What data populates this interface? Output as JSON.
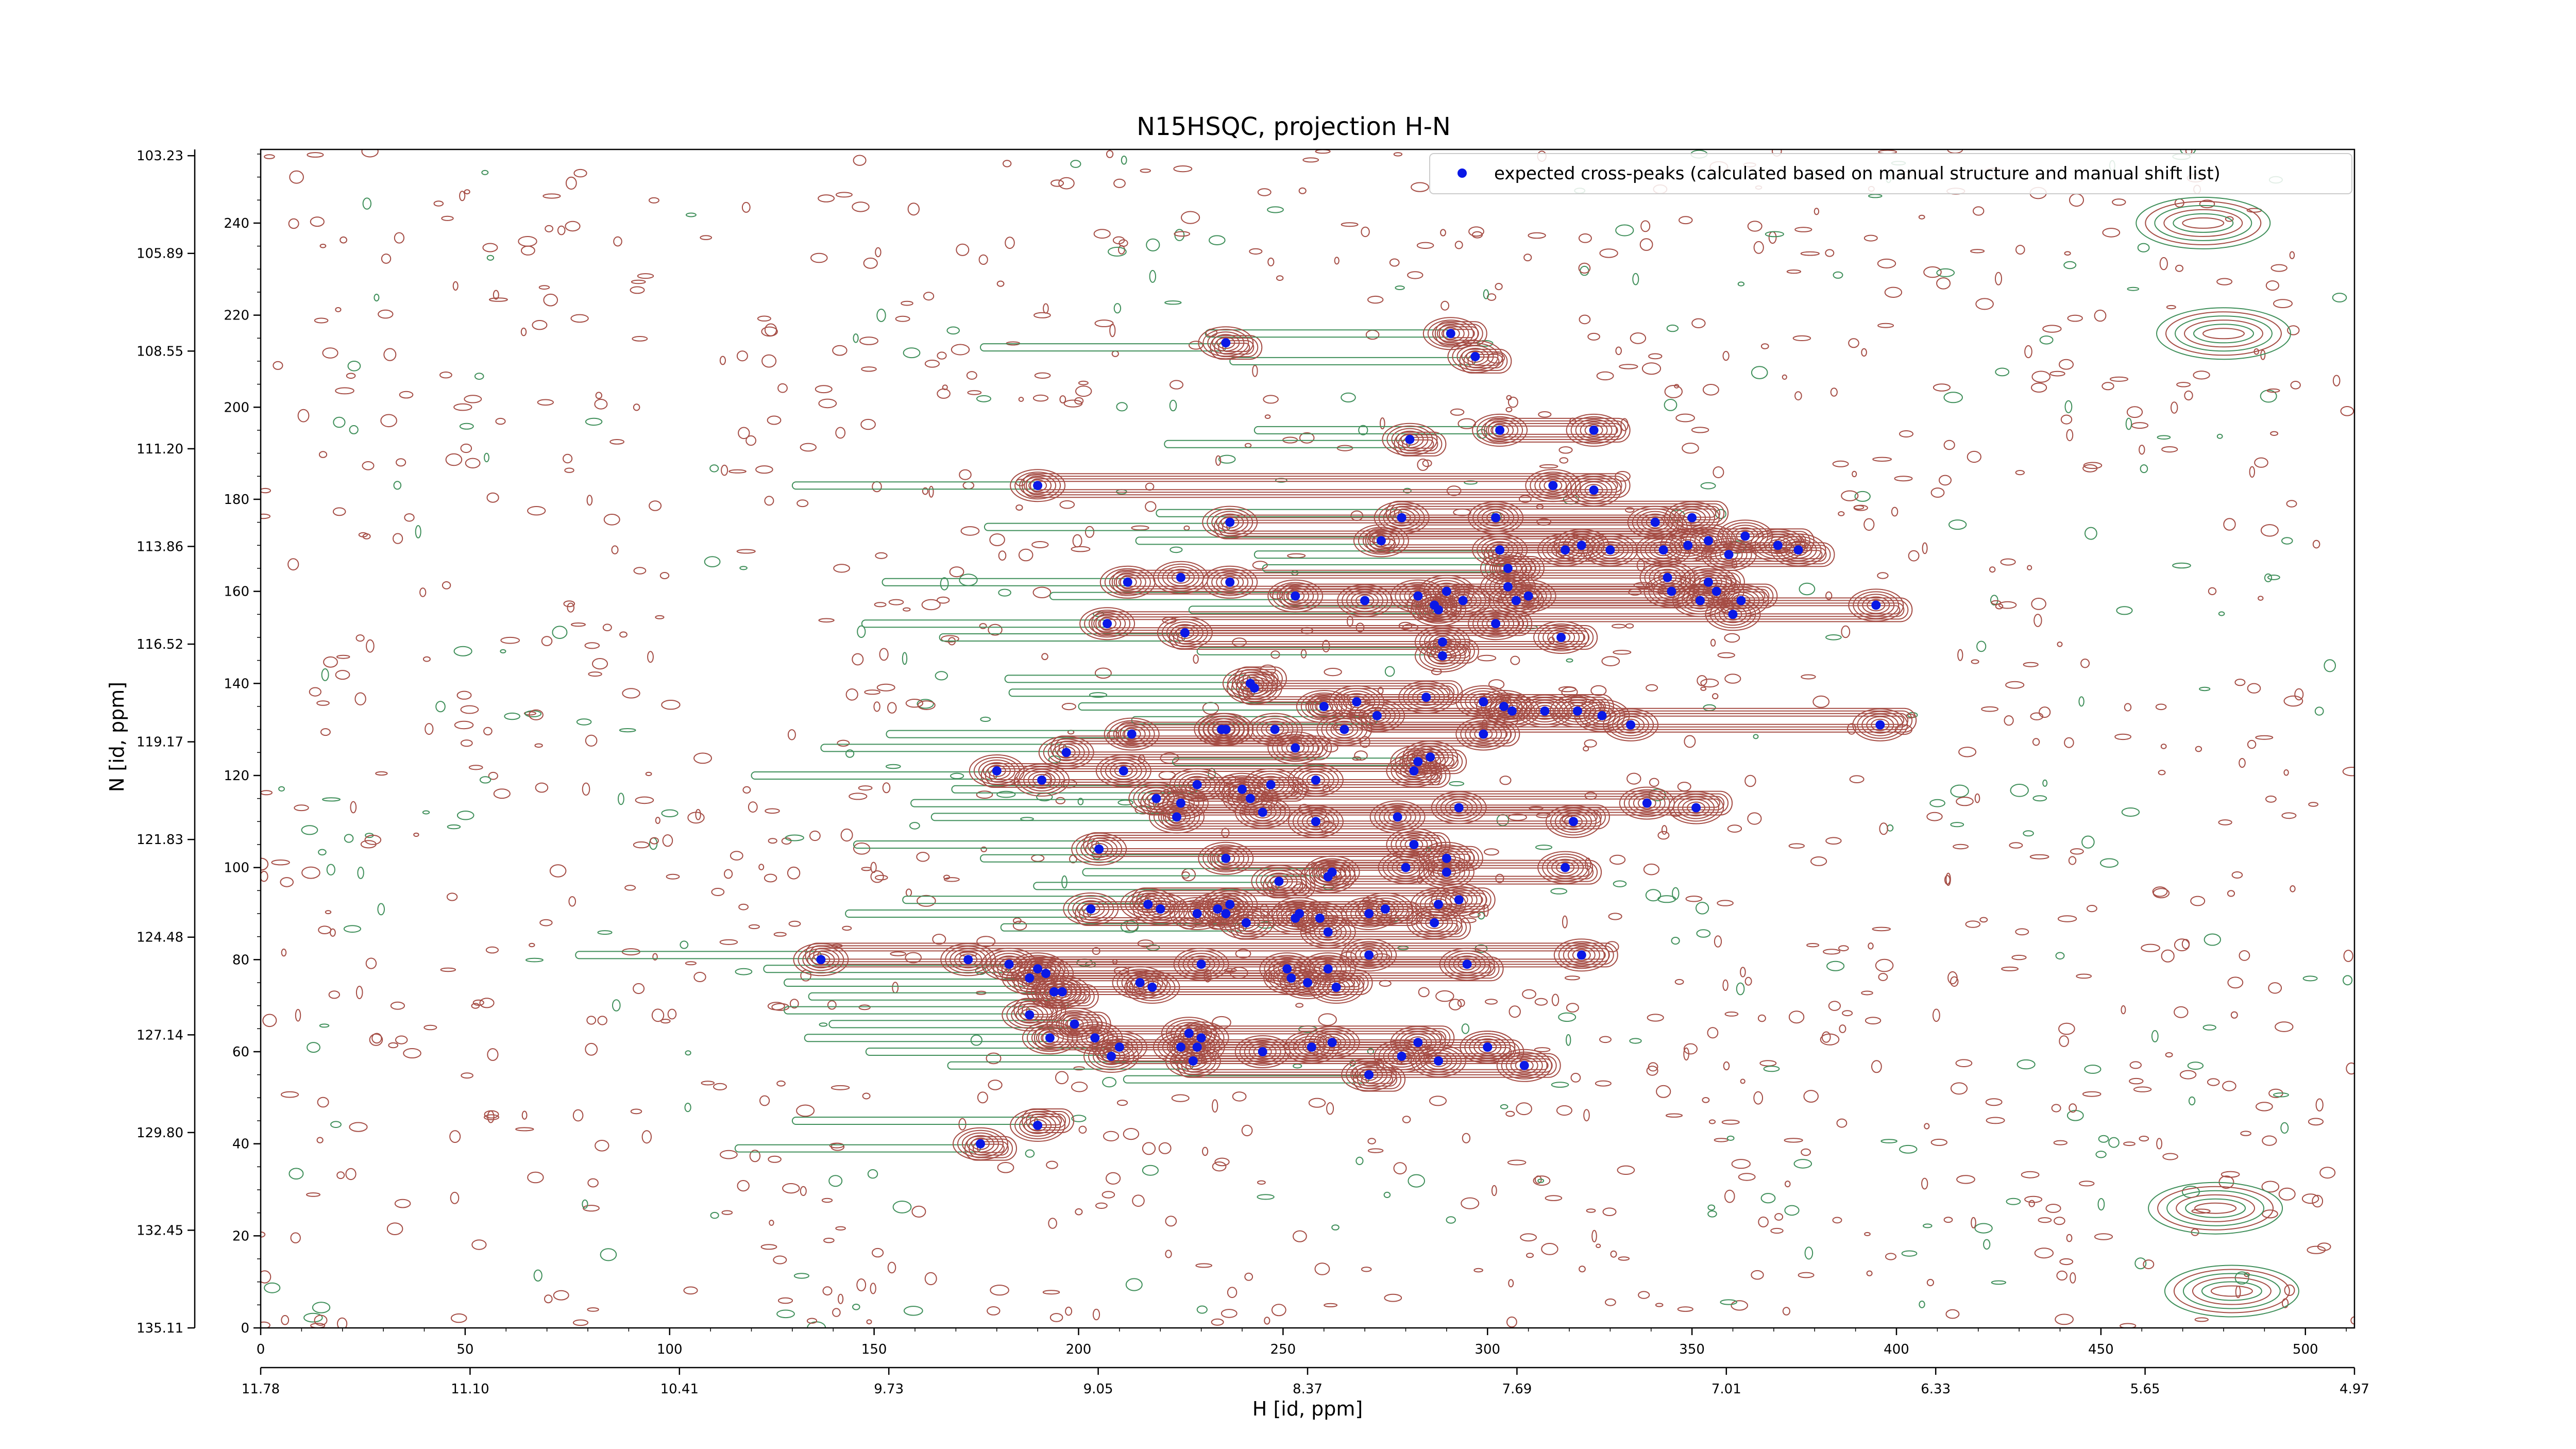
{
  "chart_data": {
    "type": "scatter",
    "title": "N15HSQC, projection H-N",
    "xlabel": "H [id, ppm]",
    "ylabel": "N [id, ppm]",
    "xlim": [
      0,
      512
    ],
    "ylim": [
      0,
      256
    ],
    "x_ticks": [
      0,
      50,
      100,
      150,
      200,
      250,
      300,
      350,
      400,
      450,
      500
    ],
    "y_ticks": [
      0,
      20,
      40,
      60,
      80,
      100,
      120,
      140,
      160,
      180,
      200,
      220,
      240
    ],
    "x_ppm_ticks": [
      {
        "pos": 0,
        "label": "11.78"
      },
      {
        "pos": 56,
        "label": "11.10"
      },
      {
        "pos": 112,
        "label": "10.41"
      },
      {
        "pos": 168,
        "label": "9.73"
      },
      {
        "pos": 224,
        "label": "9.05"
      },
      {
        "pos": 280,
        "label": "8.37"
      },
      {
        "pos": 336,
        "label": "7.69"
      },
      {
        "pos": 392,
        "label": "7.01"
      },
      {
        "pos": 448,
        "label": "6.33"
      },
      {
        "pos": 504,
        "label": "5.65"
      },
      {
        "pos": 560,
        "label": "4.97"
      }
    ],
    "y_ppm_ticks": [
      {
        "pos": 0,
        "label": "135.11"
      },
      {
        "pos": 21.8,
        "label": "132.45"
      },
      {
        "pos": 43.6,
        "label": "129.80"
      },
      {
        "pos": 65.4,
        "label": "127.14"
      },
      {
        "pos": 87.2,
        "label": "124.48"
      },
      {
        "pos": 109,
        "label": "121.83"
      },
      {
        "pos": 130.8,
        "label": "119.17"
      },
      {
        "pos": 152.6,
        "label": "116.52"
      },
      {
        "pos": 174.4,
        "label": "113.86"
      },
      {
        "pos": 196.2,
        "label": "111.20"
      },
      {
        "pos": 218,
        "label": "108.55"
      },
      {
        "pos": 239.8,
        "label": "105.89"
      },
      {
        "pos": 261.6,
        "label": "103.23"
      }
    ],
    "legend": {
      "placement": "top-right",
      "entries": [
        "expected cross-peaks (calculated based on manual structure and manual shift list)"
      ]
    },
    "colors": {
      "marker": "#0a18e6",
      "positive_contour": "#a54d45",
      "negative_contour": "#3f8f5a"
    },
    "grid": false,
    "series": [
      {
        "name": "expected cross-peaks (calculated based on manual structure and manual shift list)",
        "points": [
          [
            236,
            214
          ],
          [
            291,
            216
          ],
          [
            297,
            211
          ],
          [
            281,
            193
          ],
          [
            303,
            195
          ],
          [
            326,
            195
          ],
          [
            190,
            183
          ],
          [
            237,
            175
          ],
          [
            279,
            176
          ],
          [
            274,
            171
          ],
          [
            302,
            176
          ],
          [
            316,
            183
          ],
          [
            326,
            182
          ],
          [
            341,
            175
          ],
          [
            349,
            170
          ],
          [
            350,
            176
          ],
          [
            363,
            172
          ],
          [
            303,
            169
          ],
          [
            305,
            165
          ],
          [
            319,
            169
          ],
          [
            323,
            170
          ],
          [
            330,
            169
          ],
          [
            343,
            169
          ],
          [
            354,
            171
          ],
          [
            359,
            168
          ],
          [
            371,
            170
          ],
          [
            376,
            169
          ],
          [
            212,
            162
          ],
          [
            225,
            163
          ],
          [
            237,
            162
          ],
          [
            305,
            161
          ],
          [
            307,
            158
          ],
          [
            344,
            163
          ],
          [
            354,
            162
          ],
          [
            352,
            158
          ],
          [
            356,
            160
          ],
          [
            362,
            158
          ],
          [
            283,
            159
          ],
          [
            290,
            160
          ],
          [
            294,
            158
          ],
          [
            253,
            159
          ],
          [
            270,
            158
          ],
          [
            287,
            157
          ],
          [
            288,
            156
          ],
          [
            302,
            153
          ],
          [
            310,
            159
          ],
          [
            345,
            160
          ],
          [
            360,
            155
          ],
          [
            395,
            157
          ],
          [
            207,
            153
          ],
          [
            226,
            151
          ],
          [
            318,
            150
          ],
          [
            289,
            149
          ],
          [
            289,
            146
          ],
          [
            242,
            140
          ],
          [
            243,
            139
          ],
          [
            260,
            135
          ],
          [
            268,
            136
          ],
          [
            273,
            133
          ],
          [
            285,
            137
          ],
          [
            299,
            136
          ],
          [
            304,
            135
          ],
          [
            306,
            134
          ],
          [
            314,
            134
          ],
          [
            322,
            134
          ],
          [
            328,
            133
          ],
          [
            335,
            131
          ],
          [
            396,
            131
          ],
          [
            213,
            129
          ],
          [
            236,
            130
          ],
          [
            248,
            130
          ],
          [
            235,
            130
          ],
          [
            197,
            125
          ],
          [
            265,
            130
          ],
          [
            286,
            124
          ],
          [
            299,
            129
          ],
          [
            282,
            121
          ],
          [
            283,
            123
          ],
          [
            180,
            121
          ],
          [
            211,
            121
          ],
          [
            253,
            126
          ],
          [
            258,
            119
          ],
          [
            247,
            118
          ],
          [
            191,
            119
          ],
          [
            229,
            118
          ],
          [
            240,
            117
          ],
          [
            339,
            114
          ],
          [
            351,
            113
          ],
          [
            242,
            115
          ],
          [
            245,
            112
          ],
          [
            219,
            115
          ],
          [
            225,
            114
          ],
          [
            224,
            111
          ],
          [
            258,
            110
          ],
          [
            278,
            111
          ],
          [
            293,
            113
          ],
          [
            321,
            110
          ],
          [
            282,
            105
          ],
          [
            290,
            102
          ],
          [
            205,
            104
          ],
          [
            236,
            102
          ],
          [
            249,
            97
          ],
          [
            261,
            98
          ],
          [
            262,
            99
          ],
          [
            280,
            100
          ],
          [
            290,
            99
          ],
          [
            319,
            100
          ],
          [
            234,
            91
          ],
          [
            237,
            92
          ],
          [
            203,
            91
          ],
          [
            217,
            92
          ],
          [
            220,
            91
          ],
          [
            229,
            90
          ],
          [
            236,
            90
          ],
          [
            254,
            90
          ],
          [
            253,
            89
          ],
          [
            259,
            89
          ],
          [
            271,
            90
          ],
          [
            275,
            91
          ],
          [
            287,
            88
          ],
          [
            293,
            93
          ],
          [
            288,
            92
          ],
          [
            241,
            88
          ],
          [
            261,
            86
          ],
          [
            323,
            81
          ],
          [
            295,
            79
          ],
          [
            271,
            81
          ],
          [
            137,
            80
          ],
          [
            173,
            80
          ],
          [
            183,
            79
          ],
          [
            190,
            78
          ],
          [
            192,
            77
          ],
          [
            188,
            76
          ],
          [
            194,
            73
          ],
          [
            196,
            73
          ],
          [
            215,
            75
          ],
          [
            218,
            74
          ],
          [
            230,
            79
          ],
          [
            251,
            78
          ],
          [
            252,
            76
          ],
          [
            256,
            75
          ],
          [
            263,
            74
          ],
          [
            261,
            78
          ],
          [
            188,
            68
          ],
          [
            199,
            66
          ],
          [
            193,
            63
          ],
          [
            204,
            63
          ],
          [
            210,
            61
          ],
          [
            225,
            61
          ],
          [
            229,
            61
          ],
          [
            227,
            64
          ],
          [
            230,
            63
          ],
          [
            271,
            55
          ],
          [
            288,
            58
          ],
          [
            208,
            59
          ],
          [
            228,
            58
          ],
          [
            245,
            60
          ],
          [
            176,
            40
          ],
          [
            190,
            44
          ],
          [
            279,
            59
          ],
          [
            257,
            61
          ],
          [
            262,
            62
          ],
          [
            283,
            62
          ],
          [
            300,
            61
          ],
          [
            300,
            61
          ],
          [
            309,
            57
          ]
        ]
      }
    ]
  }
}
